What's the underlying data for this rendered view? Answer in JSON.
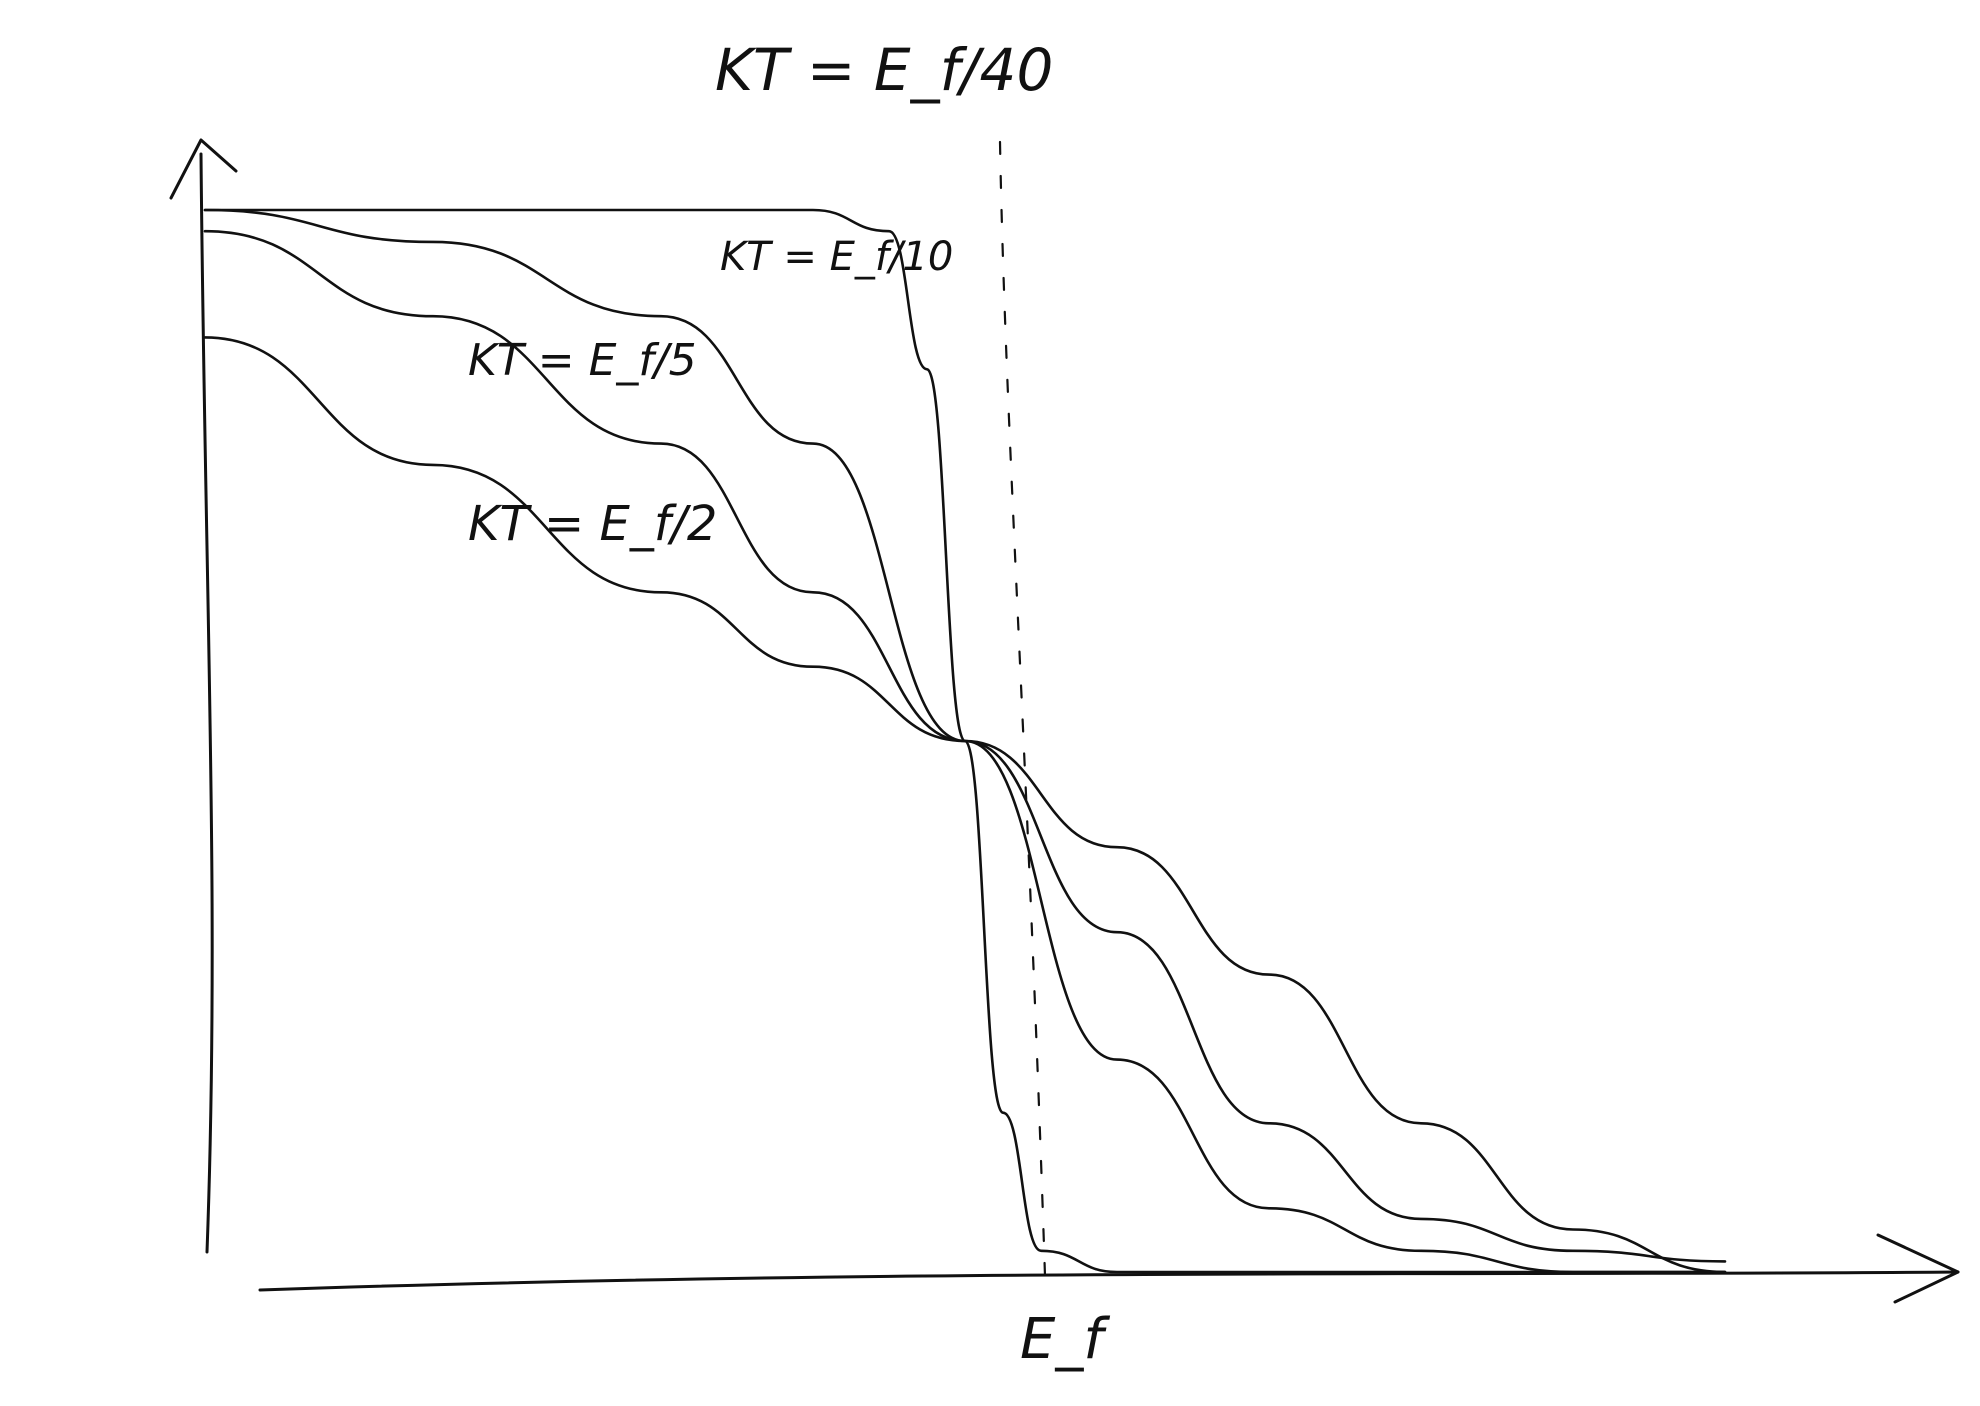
{
  "chart_data": {
    "type": "line",
    "x_marker_label": "E_f",
    "vertical_line_label": "KT = E_f/40",
    "series": [
      {
        "name": "KT = E_f/40",
        "x": [
          0,
          0.5,
          0.8,
          0.9,
          0.95,
          1.0,
          1.05,
          1.1,
          1.2,
          1.5,
          2.0
        ],
        "y": [
          1.0,
          1.0,
          1.0,
          0.98,
          0.85,
          0.5,
          0.15,
          0.02,
          0.0,
          0.0,
          0.0
        ]
      },
      {
        "name": "KT = E_f/10",
        "x": [
          0,
          0.3,
          0.6,
          0.8,
          1.0,
          1.2,
          1.4,
          1.6,
          1.8,
          2.0
        ],
        "y": [
          1.0,
          0.97,
          0.9,
          0.78,
          0.5,
          0.2,
          0.06,
          0.02,
          0.0,
          0.0
        ]
      },
      {
        "name": "KT = E_f/5",
        "x": [
          0,
          0.3,
          0.6,
          0.8,
          1.0,
          1.2,
          1.4,
          1.6,
          1.8,
          2.0
        ],
        "y": [
          0.98,
          0.9,
          0.78,
          0.64,
          0.5,
          0.32,
          0.14,
          0.05,
          0.02,
          0.01
        ]
      },
      {
        "name": "KT = E_f/2",
        "x": [
          0,
          0.3,
          0.6,
          0.8,
          1.0,
          1.2,
          1.4,
          1.6,
          1.8,
          2.0
        ],
        "y": [
          0.88,
          0.76,
          0.64,
          0.57,
          0.5,
          0.4,
          0.28,
          0.14,
          0.04,
          0.0
        ]
      }
    ],
    "xlim": [
      0,
      2.2
    ],
    "ylim": [
      0,
      1.05
    ],
    "grid": false,
    "legend": "inline labels"
  }
}
